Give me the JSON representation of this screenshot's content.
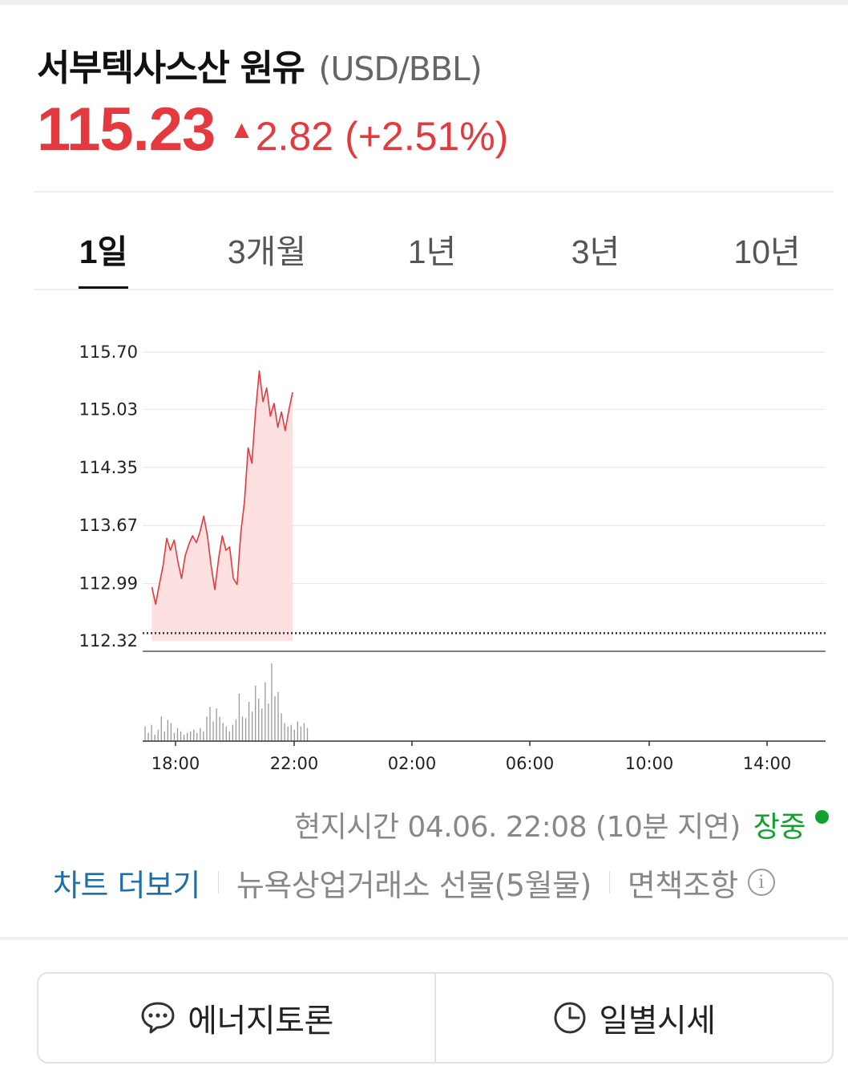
{
  "header": {
    "name": "서부텍사스산 원유",
    "unit": "(USD/BBL)",
    "price": "115.23",
    "change_arrow": "▲",
    "change": "2.82",
    "change_pct": "(+2.51%)",
    "up_color": "#e4393f"
  },
  "tabs": [
    {
      "label": "1일",
      "active": true
    },
    {
      "label": "3개월",
      "active": false
    },
    {
      "label": "1년",
      "active": false
    },
    {
      "label": "3년",
      "active": false
    },
    {
      "label": "10년",
      "active": false
    }
  ],
  "chart_data": {
    "type": "area",
    "title": "",
    "xlabel": "",
    "ylabel": "",
    "y_ticks": [
      "115.70",
      "115.03",
      "114.35",
      "113.67",
      "112.99",
      "112.32"
    ],
    "ylim": [
      112.32,
      115.7
    ],
    "x_ticks": [
      "18:00",
      "22:00",
      "02:00",
      "06:00",
      "10:00",
      "14:00"
    ],
    "xlim_hours": [
      16.9,
      16.2
    ],
    "previous_close": 112.41,
    "line_color": "#e4393f",
    "fill_color": "#fde0e0",
    "series": [
      {
        "x": [
          "16:56",
          "17:04",
          "17:12",
          "17:20",
          "17:28",
          "17:36",
          "17:44",
          "17:52",
          "18:00",
          "18:08",
          "18:16",
          "18:24",
          "18:32",
          "18:40",
          "18:48",
          "18:56",
          "19:04",
          "19:12",
          "19:20",
          "19:28",
          "19:36",
          "19:44",
          "19:52",
          "20:00",
          "20:08",
          "20:16",
          "20:24",
          "20:32",
          "20:40",
          "20:48",
          "20:56",
          "21:04",
          "21:12",
          "21:20",
          "21:28",
          "21:36",
          "21:44",
          "21:52",
          "22:00"
        ],
        "values": [
          112.95,
          112.75,
          112.98,
          113.2,
          113.52,
          113.38,
          113.5,
          113.25,
          113.05,
          113.32,
          113.45,
          113.55,
          113.47,
          113.6,
          113.78,
          113.55,
          113.2,
          112.92,
          113.28,
          113.55,
          113.38,
          113.42,
          113.05,
          112.98,
          113.58,
          113.95,
          114.58,
          114.4,
          115.0,
          115.48,
          115.12,
          115.28,
          114.95,
          115.1,
          114.82,
          115.0,
          114.78,
          115.02,
          115.23
        ]
      }
    ],
    "volume_series": [
      {
        "name": "volume",
        "values": [
          0.18,
          0.1,
          0.2,
          0.08,
          0.14,
          0.3,
          0.12,
          0.26,
          0.22,
          0.1,
          0.16,
          0.12,
          0.08,
          0.1,
          0.12,
          0.14,
          0.1,
          0.16,
          0.12,
          0.3,
          0.42,
          0.24,
          0.4,
          0.3,
          0.22,
          0.18,
          0.12,
          0.2,
          0.26,
          0.58,
          0.3,
          0.28,
          0.48,
          0.36,
          0.68,
          0.52,
          0.4,
          0.72,
          0.46,
          0.95,
          0.55,
          0.6,
          0.34,
          0.22,
          0.18,
          0.2,
          0.14,
          0.24,
          0.18,
          0.22,
          0.16
        ]
      }
    ]
  },
  "info": {
    "timestamp": "현지시간 04.06. 22:08 (10분 지연)",
    "status": "장중",
    "status_color": "#12a12f"
  },
  "links": {
    "more_chart": "차트 더보기",
    "exchange": "뉴욕상업거래소 선물(5월물)",
    "disclaimer": "면책조항",
    "info_icon": "info-circle-icon"
  },
  "buttons": {
    "discussion": "에너지토론",
    "discussion_icon": "speech-bubble-icon",
    "daily": "일별시세",
    "daily_icon": "clock-icon"
  }
}
